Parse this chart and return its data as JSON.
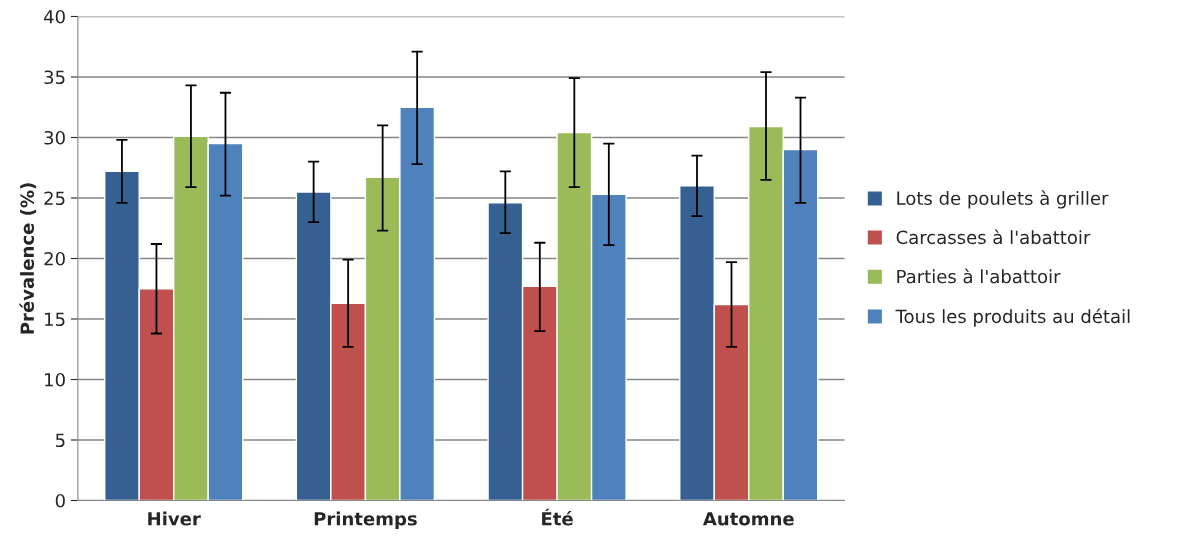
{
  "chart_data": {
    "type": "bar",
    "ylabel": "Prévalence (%)",
    "categories": [
      "Hiver",
      "Printemps",
      "Été",
      "Automne"
    ],
    "series": [
      {
        "name": "Lots de poulets à griller",
        "color": "#376092",
        "values": [
          27.2,
          25.5,
          24.6,
          26.0
        ],
        "errors": [
          [
            24.6,
            29.8
          ],
          [
            23.0,
            28.0
          ],
          [
            22.1,
            27.2
          ],
          [
            23.5,
            28.5
          ]
        ]
      },
      {
        "name": "Carcasses à l'abattoir",
        "color": "#c0504d",
        "values": [
          17.5,
          16.3,
          17.7,
          16.2
        ],
        "errors": [
          [
            13.8,
            21.2
          ],
          [
            12.7,
            19.9
          ],
          [
            14.0,
            21.3
          ],
          [
            12.7,
            19.7
          ]
        ]
      },
      {
        "name": "Parties à l'abattoir",
        "color": "#9bbb59",
        "values": [
          30.1,
          26.7,
          30.4,
          30.9
        ],
        "errors": [
          [
            25.9,
            34.3
          ],
          [
            22.3,
            31.0
          ],
          [
            25.9,
            34.9
          ],
          [
            26.5,
            35.4
          ]
        ]
      },
      {
        "name": "Tous les produits au détail",
        "color": "#4f81bd",
        "values": [
          29.5,
          32.5,
          25.3,
          29.0
        ],
        "errors": [
          [
            25.2,
            33.7
          ],
          [
            27.8,
            37.1
          ],
          [
            21.1,
            29.5
          ],
          [
            24.6,
            33.3
          ]
        ]
      }
    ],
    "ylim": [
      0,
      40
    ],
    "yticks": [
      0,
      5,
      10,
      15,
      20,
      25,
      30,
      35,
      40
    ],
    "grid": "y",
    "legend": "right"
  }
}
